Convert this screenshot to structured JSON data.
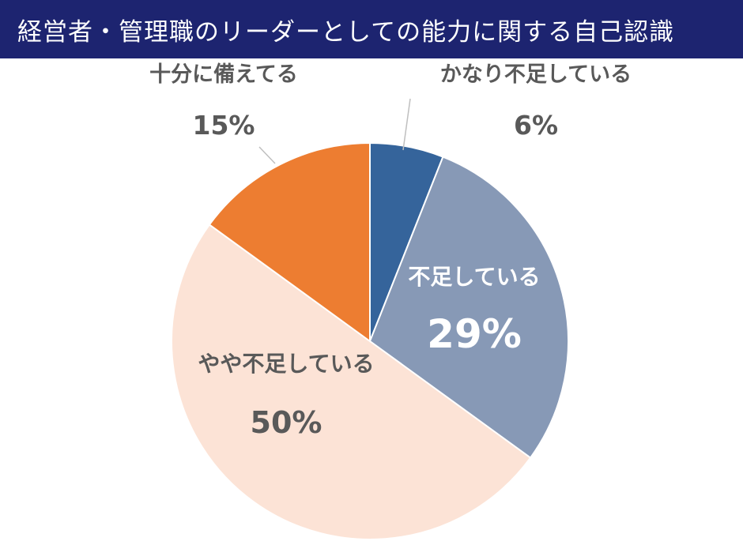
{
  "title": "経営者・管理職のリーダーとしての能力に関する自己認識",
  "colors": {
    "title_bar_bg": "#1d2470",
    "title_text": "#ffffff",
    "label_dark": "#595959",
    "label_light": "#ffffff",
    "leader_line": "#bfbfbf",
    "slice_border": "#ffffff"
  },
  "chart_data": {
    "type": "pie",
    "start": "12 o'clock",
    "direction": "clockwise",
    "slices": [
      {
        "label": "かなり不足している",
        "value": 6,
        "value_label": "6%",
        "color": "#35649b",
        "label_placement": "outside-top-right"
      },
      {
        "label": "不足している",
        "value": 29,
        "value_label": "29%",
        "color": "#8799b6",
        "label_placement": "inside"
      },
      {
        "label": "やや不足している",
        "value": 50,
        "value_label": "50%",
        "color": "#fce3d6",
        "label_placement": "inside"
      },
      {
        "label": "十分に備えてる",
        "value": 15,
        "value_label": "15%",
        "color": "#ed7d31",
        "label_placement": "outside-top-left"
      }
    ]
  }
}
